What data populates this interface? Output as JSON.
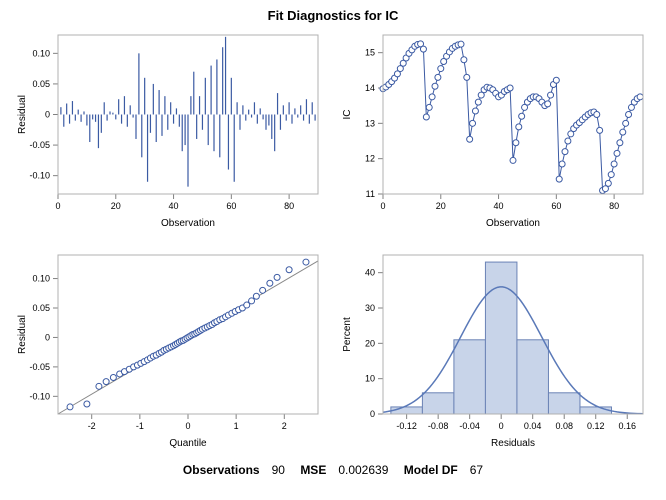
{
  "title": "Fit Diagnostics for IC",
  "colors": {
    "background": "#ffffff",
    "panel_bg": "#ffffff",
    "panel_border": "#b0b0b0",
    "axis": "#808080",
    "tick": "#808080",
    "grid": "#e7e7e7",
    "series": "#3b5aa3",
    "marker_stroke": "#3b5aa3",
    "marker_fill": "#ffffff",
    "bar_fill": "#c8d4e9",
    "bar_stroke": "#6a82b5",
    "curve": "#5a79b8",
    "ref_line": "#888888",
    "text": "#000000"
  },
  "fonts": {
    "title_size": 13,
    "label_size": 10,
    "tick_size": 9,
    "summary_size": 12
  },
  "panel1": {
    "type": "needle",
    "xlabel": "Observation",
    "ylabel": "Residual",
    "xlim": [
      0,
      90
    ],
    "xticks": [
      0,
      20,
      40,
      60,
      80
    ],
    "ylim": [
      -0.13,
      0.13
    ],
    "yticks": [
      -0.1,
      -0.05,
      0.0,
      0.05,
      0.1
    ],
    "baseline": 0,
    "data": [
      0.0,
      0.012,
      -0.02,
      0.018,
      -0.015,
      0.022,
      -0.01,
      0.008,
      -0.012,
      0.005,
      -0.018,
      -0.045,
      -0.008,
      -0.012,
      -0.055,
      -0.03,
      0.02,
      -0.01,
      0.005,
      0.003,
      -0.008,
      0.025,
      -0.015,
      0.03,
      -0.02,
      0.015,
      -0.005,
      -0.04,
      0.1,
      -0.07,
      0.06,
      -0.11,
      -0.03,
      0.05,
      -0.045,
      0.04,
      -0.035,
      0.03,
      -0.025,
      0.02,
      -0.015,
      0.01,
      -0.02,
      -0.06,
      -0.05,
      -0.118,
      0.03,
      0.07,
      -0.04,
      0.03,
      -0.025,
      0.06,
      -0.05,
      0.08,
      -0.06,
      0.09,
      -0.07,
      0.11,
      0.127,
      -0.09,
      0.06,
      -0.11,
      0.02,
      -0.025,
      0.015,
      -0.01,
      0.008,
      -0.005,
      0.02,
      -0.015,
      0.01,
      -0.008,
      -0.025,
      -0.018,
      -0.04,
      -0.06,
      0.035,
      -0.025,
      0.015,
      -0.01,
      0.02,
      -0.015,
      0.01,
      -0.005,
      0.015,
      -0.01,
      0.025,
      -0.015,
      0.02,
      -0.01
    ]
  },
  "panel2": {
    "type": "scatter-line",
    "xlabel": "Observation",
    "ylabel": "IC",
    "xlim": [
      0,
      90
    ],
    "xticks": [
      0,
      20,
      40,
      60,
      80
    ],
    "ylim": [
      11,
      15.5
    ],
    "yticks": [
      11,
      12,
      13,
      14,
      15
    ],
    "marker_size": 3,
    "data": [
      13.98,
      14.03,
      14.1,
      14.18,
      14.28,
      14.4,
      14.55,
      14.7,
      14.85,
      14.98,
      15.08,
      15.18,
      15.23,
      15.25,
      15.1,
      13.18,
      13.45,
      13.75,
      14.05,
      14.3,
      14.55,
      14.75,
      14.9,
      15.02,
      15.12,
      15.18,
      15.22,
      15.24,
      14.8,
      14.3,
      12.55,
      13.0,
      13.35,
      13.6,
      13.8,
      13.95,
      14.02,
      14.0,
      13.95,
      13.85,
      13.75,
      13.8,
      13.9,
      13.95,
      14.0,
      11.95,
      12.45,
      12.9,
      13.2,
      13.45,
      13.6,
      13.7,
      13.75,
      13.75,
      13.7,
      13.6,
      13.5,
      13.55,
      13.8,
      14.1,
      14.22,
      11.42,
      11.85,
      12.2,
      12.5,
      12.7,
      12.85,
      12.95,
      13.02,
      13.1,
      13.18,
      13.25,
      13.3,
      13.32,
      13.25,
      12.8,
      11.1,
      11.15,
      11.3,
      11.55,
      11.85,
      12.15,
      12.45,
      12.75,
      13.0,
      13.25,
      13.45,
      13.6,
      13.7,
      13.75
    ]
  },
  "panel3": {
    "type": "qq",
    "xlabel": "Quantile",
    "ylabel": "Residual",
    "xlim": [
      -2.7,
      2.7
    ],
    "xticks": [
      -2,
      -1,
      0,
      1,
      2
    ],
    "ylim": [
      -0.13,
      0.14
    ],
    "yticks": [
      -0.1,
      -0.05,
      0.0,
      0.05,
      0.1
    ],
    "ref_line": {
      "x1": -2.7,
      "y1": -0.13,
      "x2": 2.7,
      "y2": 0.13
    },
    "marker_size": 3,
    "data_x": [
      -2.45,
      -2.1,
      -1.85,
      -1.7,
      -1.55,
      -1.42,
      -1.32,
      -1.22,
      -1.13,
      -1.05,
      -0.98,
      -0.91,
      -0.84,
      -0.78,
      -0.72,
      -0.66,
      -0.6,
      -0.55,
      -0.5,
      -0.45,
      -0.4,
      -0.35,
      -0.3,
      -0.26,
      -0.22,
      -0.18,
      -0.14,
      -0.1,
      -0.06,
      -0.02,
      0.02,
      0.06,
      0.1,
      0.14,
      0.18,
      0.22,
      0.26,
      0.3,
      0.35,
      0.4,
      0.45,
      0.5,
      0.55,
      0.6,
      0.66,
      0.72,
      0.78,
      0.84,
      0.91,
      0.98,
      1.05,
      1.13,
      1.22,
      1.32,
      1.42,
      1.55,
      1.7,
      1.85,
      2.1,
      2.45
    ],
    "data_y": [
      -0.118,
      -0.113,
      -0.083,
      -0.075,
      -0.068,
      -0.062,
      -0.058,
      -0.054,
      -0.05,
      -0.047,
      -0.044,
      -0.041,
      -0.038,
      -0.035,
      -0.032,
      -0.03,
      -0.027,
      -0.025,
      -0.022,
      -0.02,
      -0.018,
      -0.016,
      -0.014,
      -0.012,
      -0.01,
      -0.008,
      -0.006,
      -0.005,
      -0.003,
      -0.001,
      0.001,
      0.003,
      0.005,
      0.006,
      0.008,
      0.01,
      0.012,
      0.014,
      0.016,
      0.018,
      0.02,
      0.022,
      0.025,
      0.027,
      0.03,
      0.032,
      0.035,
      0.038,
      0.041,
      0.044,
      0.047,
      0.05,
      0.055,
      0.062,
      0.07,
      0.08,
      0.092,
      0.102,
      0.115,
      0.128
    ]
  },
  "panel4": {
    "type": "histogram",
    "xlabel": "Residuals",
    "ylabel": "Percent",
    "xlim": [
      -0.15,
      0.18
    ],
    "xticks": [
      -0.12,
      -0.08,
      -0.04,
      0,
      0.04,
      0.08,
      0.12,
      0.16
    ],
    "ylim": [
      0,
      45
    ],
    "yticks": [
      0,
      10,
      20,
      30,
      40
    ],
    "bin_width": 0.04,
    "bins": [
      {
        "x": -0.12,
        "h": 2
      },
      {
        "x": -0.08,
        "h": 6
      },
      {
        "x": -0.04,
        "h": 21
      },
      {
        "x": 0.0,
        "h": 43
      },
      {
        "x": 0.04,
        "h": 21
      },
      {
        "x": 0.08,
        "h": 6
      },
      {
        "x": 0.12,
        "h": 2
      }
    ],
    "curve": {
      "mean": 0.0,
      "sd": 0.0514,
      "peak": 36
    }
  },
  "summary": {
    "obs_label": "Observations",
    "obs_value": "90",
    "mse_label": "MSE",
    "mse_value": "0.002639",
    "df_label": "Model DF",
    "df_value": "67"
  }
}
